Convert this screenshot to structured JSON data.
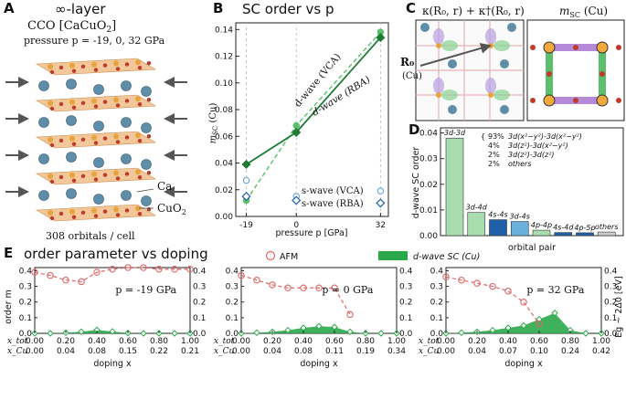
{
  "panels": {
    "A": {
      "letter": "A",
      "title": "∞-layer",
      "compound": "CCO [CaCuO",
      "compound_sub": "2",
      "compound_close": "]",
      "pressure_text": "pressure p = -19, 0, 32 GPa",
      "ca_label": "Ca",
      "cuo2_label": "CuO",
      "cuo2_sub": "2",
      "orbitals_text": "308 orbitals / cell"
    },
    "B": {
      "letter": "B",
      "title": "SC order vs p",
      "ylabel": "m",
      "ylabel_sub": "SC",
      "ylabel_unit": " (Cu)",
      "xlabel": "pressure p [GPa]",
      "labels": {
        "dwave_vca": "d-wave (VCA)",
        "dwave_rba": "d-wave (RBA)",
        "swave_vca": "s-wave (VCA)",
        "swave_rba": "s-wave (RBA)"
      }
    },
    "C": {
      "letter": "C",
      "title_left": "κ(R₀, r) + κ†(R₀, r)",
      "title_right_m": "m",
      "title_right_sub": "SC",
      "title_right_rest": " (Cu)",
      "r0_label": "R₀",
      "r0_sub_label": "(Cu)"
    },
    "D": {
      "letter": "D",
      "ylabel": "d-wave SC order",
      "xlabel": "orbital pair",
      "legend": [
        {
          "pct": "93%",
          "label": "3d(x²−y²)-3d(x²−y²)"
        },
        {
          "pct": "4%",
          "label": "3d(z²)-3d(x²−y²)"
        },
        {
          "pct": "2%",
          "label": "3d(z²)-3d(z²)"
        },
        {
          "pct": "2%",
          "label": "others"
        }
      ]
    },
    "E": {
      "letter": "E",
      "title": "order parameter vs doping",
      "legend_afm": "AFM",
      "legend_sc": "d-wave SC (Cu)",
      "ylabel_left": "order m",
      "ylabel_right": "Eg ~ 2Δ0 [eV]",
      "xlabel": "doping x",
      "xtot_label": "x_tot",
      "xcu_label": "x_Cu"
    }
  },
  "chart_data": [
    {
      "id": "B",
      "type": "line",
      "title": "SC order vs p",
      "xlabel": "pressure p [GPa]",
      "ylabel": "m_SC (Cu)",
      "x": [
        -19,
        0,
        32
      ],
      "xticks": [
        "-19",
        "0",
        "32"
      ],
      "xlim": [
        -23,
        35
      ],
      "ylim": [
        0,
        0.145
      ],
      "yticks": [
        0.0,
        0.02,
        0.04,
        0.06,
        0.08,
        0.1,
        0.12,
        0.14
      ],
      "yticklabels": [
        "0.00",
        "0.02",
        "0.04",
        "0.06",
        "0.08",
        "0.10",
        "0.12",
        "0.14"
      ],
      "series": [
        {
          "name": "d-wave (VCA)",
          "values": [
            0.012,
            0.068,
            0.138
          ],
          "color": "#5cbf6e",
          "style": "dashed",
          "marker": "circle-filled"
        },
        {
          "name": "d-wave (RBA)",
          "values": [
            0.039,
            0.063,
            0.134
          ],
          "color": "#1f7a34",
          "style": "solid",
          "marker": "diamond-filled"
        },
        {
          "name": "s-wave (VCA)",
          "values": [
            0.027,
            0.015,
            0.019
          ],
          "color": "#6fa8dc",
          "style": "none",
          "marker": "circle-open"
        },
        {
          "name": "s-wave (RBA)",
          "values": [
            0.015,
            0.012,
            0.01
          ],
          "color": "#1f5fa8",
          "style": "none",
          "marker": "diamond-open"
        }
      ]
    },
    {
      "id": "D",
      "type": "bar",
      "xlabel": "orbital pair",
      "ylabel": "d-wave SC order",
      "categories": [
        "3d-3d",
        "3d-4d",
        "4s-4s",
        "3d-4s",
        "4p-4p",
        "4s-4d",
        "4p-5p",
        "others"
      ],
      "values": [
        0.038,
        0.009,
        0.0062,
        0.0055,
        0.0021,
        0.0012,
        0.0011,
        0.0014
      ],
      "colors": [
        "#a8ddb0",
        "#a8ddb0",
        "#1f5fa8",
        "#6ab0dc",
        "#a8ddb0",
        "#1f5fa8",
        "#1f5fa8",
        "#cccccc"
      ],
      "ylim": [
        0,
        0.042
      ],
      "yticks": [
        0.0,
        0.01,
        0.02,
        0.03,
        0.04
      ],
      "yticklabels": [
        "0.00",
        "0.01",
        "0.02",
        "0.03",
        "0.04"
      ]
    },
    {
      "id": "E1",
      "type": "area",
      "annotation": "p = -19 GPa",
      "xtot": [
        "0.00",
        "0.20",
        "0.40",
        "0.60",
        "0.80",
        "1.00"
      ],
      "xcu": [
        "0.00",
        "0.04",
        "0.08",
        "0.15",
        "0.22",
        "0.21"
      ],
      "ylim": [
        0,
        0.42
      ],
      "yticks": [
        0.0,
        0.1,
        0.2,
        0.3,
        0.4
      ],
      "yticklabels": [
        "0.0",
        "0.1",
        "0.2",
        "0.3",
        "0.4"
      ],
      "x": [
        0.0,
        0.1,
        0.2,
        0.3,
        0.4,
        0.5,
        0.6,
        0.7,
        0.8,
        0.9,
        1.0
      ],
      "afm": [
        0.39,
        0.37,
        0.34,
        0.33,
        0.39,
        0.41,
        0.42,
        0.42,
        0.41,
        0.41,
        0.41
      ],
      "sc": [
        0.0,
        0.0,
        0.004,
        0.01,
        0.022,
        0.012,
        0.002,
        0.0,
        0.0,
        0.0,
        0.0
      ]
    },
    {
      "id": "E2",
      "type": "area",
      "annotation": "p = 0 GPa",
      "xtot": [
        "0.00",
        "0.20",
        "0.40",
        "0.60",
        "0.80",
        "1.00"
      ],
      "xcu": [
        "0.00",
        "0.04",
        "0.08",
        "0.11",
        "0.19",
        "0.34"
      ],
      "ylim": [
        0,
        0.42
      ],
      "yticks": [
        0.0,
        0.1,
        0.2,
        0.3,
        0.4
      ],
      "yticklabels": [
        "0.0",
        "0.1",
        "0.2",
        "0.3",
        "0.4"
      ],
      "x": [
        0.0,
        0.1,
        0.2,
        0.3,
        0.4,
        0.5,
        0.6,
        0.7,
        0.8,
        0.9,
        1.0
      ],
      "afm": [
        0.37,
        0.34,
        0.31,
        0.29,
        0.29,
        0.29,
        0.29,
        0.12,
        null,
        null,
        null
      ],
      "sc": [
        0.0,
        0.004,
        0.01,
        0.02,
        0.035,
        0.045,
        0.04,
        0.01,
        0.0,
        0.0,
        0.0
      ]
    },
    {
      "id": "E3",
      "type": "area",
      "annotation": "p = 32 GPa",
      "xtot": [
        "0.00",
        "0.20",
        "0.40",
        "0.60",
        "0.80",
        "1.00"
      ],
      "xcu": [
        "0.00",
        "0.04",
        "0.07",
        "0.10",
        "0.24",
        "0.42"
      ],
      "ylim": [
        0,
        0.42
      ],
      "yticks": [
        0.0,
        0.1,
        0.2,
        0.3,
        0.4
      ],
      "yticklabels": [
        "0.0",
        "0.1",
        "0.2",
        "0.3",
        "0.4"
      ],
      "x": [
        0.0,
        0.1,
        0.2,
        0.3,
        0.4,
        0.5,
        0.6,
        0.7,
        0.8,
        0.9,
        1.0
      ],
      "afm": [
        0.36,
        0.34,
        0.32,
        0.3,
        0.27,
        0.2,
        0.06,
        null,
        null,
        null,
        null
      ],
      "sc": [
        0.0,
        0.004,
        0.01,
        0.02,
        0.035,
        0.05,
        0.09,
        0.13,
        0.02,
        0.0,
        0.0
      ]
    }
  ]
}
